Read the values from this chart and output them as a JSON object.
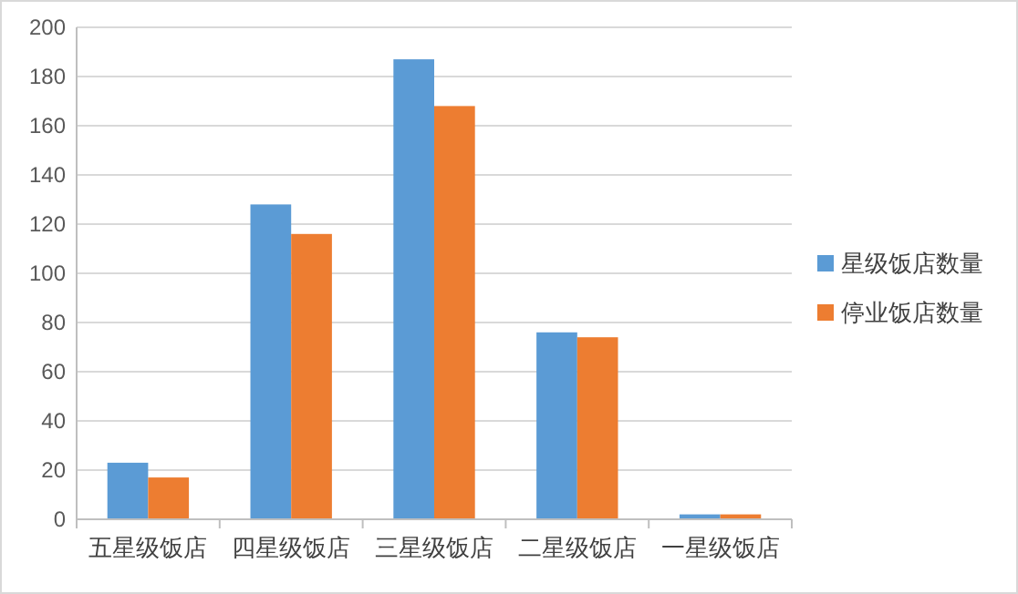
{
  "chart_data": {
    "type": "bar",
    "categories": [
      "五星级饭店",
      "四星级饭店",
      "三星级饭店",
      "二星级饭店",
      "一星级饭店"
    ],
    "series": [
      {
        "name": "星级饭店数量",
        "color": "#5b9bd5",
        "values": [
          23,
          128,
          187,
          76,
          2
        ]
      },
      {
        "name": "停业饭店数量",
        "color": "#ed7d31",
        "values": [
          17,
          116,
          168,
          74,
          2
        ]
      }
    ],
    "ylim": [
      0,
      200
    ],
    "yticks": [
      0,
      20,
      40,
      60,
      80,
      100,
      120,
      140,
      160,
      180,
      200
    ],
    "grid": "y",
    "legend": "right"
  }
}
